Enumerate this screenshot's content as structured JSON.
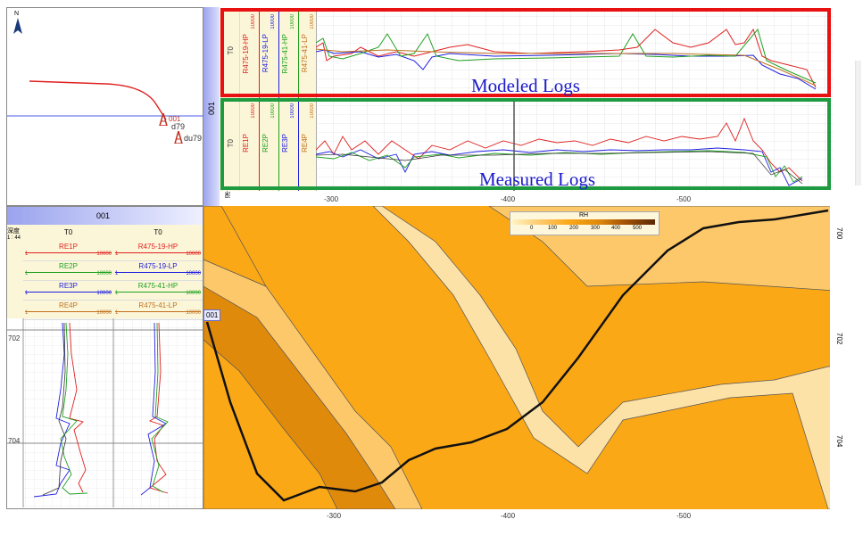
{
  "map": {
    "north_label": "N",
    "wells": [
      "001",
      "d79",
      "du79"
    ]
  },
  "top_panel": {
    "well_label": "001",
    "modeled_tracks": [
      {
        "name": "T0",
        "color": "#333333"
      },
      {
        "name": "R475-19-HP",
        "color": "#e02020",
        "scale": "10000"
      },
      {
        "name": "R475-19-LP",
        "color": "#2020e0",
        "scale": "10000"
      },
      {
        "name": "R475-41-HP",
        "color": "#20a020",
        "scale": "10000"
      },
      {
        "name": "R475-41-LP",
        "color": "#c07020",
        "scale": "10000"
      }
    ],
    "measured_tracks": [
      {
        "name": "T0",
        "color": "#333333"
      },
      {
        "name": "RE1P",
        "color": "#e02020",
        "scale": "10000"
      },
      {
        "name": "RE2P",
        "color": "#20a020",
        "scale": "10000"
      },
      {
        "name": "RE3P",
        "color": "#2020e0",
        "scale": "10000"
      },
      {
        "name": "RE4P",
        "color": "#c07020",
        "scale": "10000"
      }
    ],
    "depth_label": "深度",
    "modeled_box_label": "Modeled Logs",
    "measured_box_label": "Measured Logs",
    "x_ticks": [
      "-300",
      "-400",
      "-500"
    ]
  },
  "left_log_panel": {
    "title": "001",
    "scale_label": "深度",
    "scale_value": "1 : 44",
    "columns": [
      {
        "header": "T0",
        "tracks": [
          {
            "name": "RE1P",
            "min": "1",
            "max": "10000",
            "color": "#e02020"
          },
          {
            "name": "RE2P",
            "min": "1",
            "max": "10000",
            "color": "#20a020"
          },
          {
            "name": "RE3P",
            "min": "1",
            "max": "10000",
            "color": "#2020e0"
          },
          {
            "name": "RE4P",
            "min": "1",
            "max": "10000",
            "color": "#c07020"
          }
        ]
      },
      {
        "header": "T0",
        "tracks": [
          {
            "name": "R475-19-HP",
            "min": "1",
            "max": "10000",
            "color": "#e02020"
          },
          {
            "name": "R475-19-LP",
            "min": "1",
            "max": "10000",
            "color": "#2020e0"
          },
          {
            "name": "R475-41-HP",
            "min": "1",
            "max": "10000",
            "color": "#20a020"
          },
          {
            "name": "R475-41-LP",
            "min": "1",
            "max": "10000",
            "color": "#c07020"
          }
        ]
      }
    ],
    "depth_ticks": [
      "702",
      "704"
    ]
  },
  "section": {
    "legend_title": "RH",
    "legend_ticks": [
      "0",
      "100",
      "200",
      "300",
      "400",
      "500"
    ],
    "well_marker": "001",
    "x_ticks": [
      "-300",
      "-400",
      "-500"
    ],
    "y_ticks": [
      "700",
      "702",
      "704"
    ],
    "colors": {
      "light": "#fdc86a",
      "mid": "#fba817",
      "dark": "#e08a0c",
      "pale": "#fde2a8"
    }
  }
}
